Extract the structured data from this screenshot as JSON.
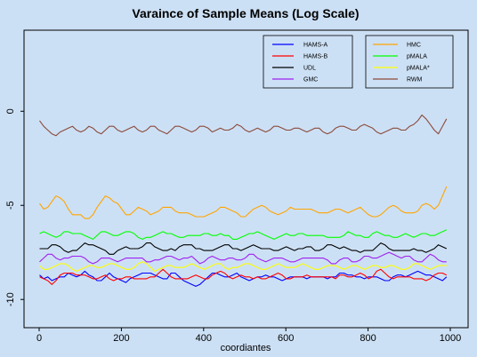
{
  "chart_data": {
    "type": "line",
    "title": "Varaince of Sample Means (Log Scale)",
    "xlabel": "coordiantes",
    "ylabel": "",
    "xlim": [
      0,
      1000
    ],
    "ylim": [
      -11.5,
      4
    ],
    "x_ticks": [
      0,
      200,
      400,
      600,
      800,
      1000
    ],
    "y_ticks": [
      0,
      -5,
      -10
    ],
    "grid": false,
    "legend_position": "top-right",
    "x_start": 1,
    "x_step": 10,
    "series": [
      {
        "name": "HAMS-A",
        "color": "#0000ff",
        "values": [
          -8.7,
          -8.9,
          -8.8,
          -9.0,
          -8.9,
          -8.8,
          -8.8,
          -8.6,
          -8.7,
          -8.8,
          -8.7,
          -8.5,
          -8.7,
          -8.8,
          -9.0,
          -9.0,
          -8.8,
          -8.6,
          -8.8,
          -8.9,
          -9.0,
          -9.1,
          -8.9,
          -8.8,
          -8.7,
          -8.6,
          -8.6,
          -8.6,
          -8.7,
          -8.8,
          -8.9,
          -8.9,
          -8.6,
          -8.6,
          -8.8,
          -9.0,
          -9.1,
          -9.2,
          -9.3,
          -9.2,
          -9.0,
          -8.8,
          -8.6,
          -8.6,
          -8.7,
          -8.8,
          -8.8,
          -8.7,
          -8.6,
          -8.8,
          -8.9,
          -9.0,
          -8.9,
          -8.8,
          -8.8,
          -8.7,
          -8.8,
          -8.8,
          -8.9,
          -9.0,
          -8.9,
          -8.8,
          -8.8,
          -8.8,
          -8.8,
          -8.9,
          -8.8,
          -8.8,
          -8.8,
          -8.8,
          -8.9,
          -8.8,
          -8.8,
          -8.6,
          -8.6,
          -8.7,
          -8.7,
          -8.8,
          -8.8,
          -8.9,
          -8.8,
          -8.8,
          -8.8,
          -8.9,
          -9.0,
          -9.0,
          -8.8,
          -8.7,
          -8.7,
          -8.8,
          -8.7,
          -8.6,
          -8.5,
          -8.6,
          -8.7,
          -8.7,
          -8.8,
          -8.9,
          -9.0,
          -8.8
        ]
      },
      {
        "name": "HAMS-B",
        "color": "#ff0000",
        "values": [
          -8.8,
          -8.9,
          -9.0,
          -9.2,
          -9.0,
          -8.7,
          -8.6,
          -8.6,
          -8.6,
          -8.7,
          -8.7,
          -8.7,
          -8.8,
          -8.9,
          -8.9,
          -8.8,
          -8.7,
          -8.9,
          -9.0,
          -8.9,
          -8.9,
          -8.8,
          -8.8,
          -8.9,
          -8.9,
          -8.9,
          -8.9,
          -8.8,
          -8.8,
          -8.6,
          -8.4,
          -8.6,
          -8.8,
          -8.9,
          -8.9,
          -8.9,
          -8.9,
          -8.8,
          -8.7,
          -8.8,
          -8.9,
          -8.9,
          -8.7,
          -8.6,
          -8.5,
          -8.6,
          -8.8,
          -8.9,
          -8.8,
          -8.7,
          -8.8,
          -8.8,
          -8.9,
          -8.8,
          -8.9,
          -8.9,
          -8.8,
          -8.7,
          -8.6,
          -8.7,
          -8.9,
          -8.9,
          -8.8,
          -8.8,
          -8.8,
          -8.7,
          -8.8,
          -8.8,
          -8.8,
          -8.8,
          -8.8,
          -8.8,
          -8.9,
          -8.7,
          -8.7,
          -8.8,
          -8.8,
          -8.7,
          -8.6,
          -8.7,
          -8.9,
          -8.8,
          -8.5,
          -8.4,
          -8.6,
          -8.8,
          -8.9,
          -8.8,
          -8.8,
          -8.8,
          -8.8,
          -8.9,
          -8.9,
          -8.9,
          -9.0,
          -8.9,
          -8.7,
          -8.6,
          -8.6,
          -8.7
        ]
      },
      {
        "name": "UDL",
        "color": "#000000",
        "values": [
          -7.3,
          -7.3,
          -7.3,
          -7.1,
          -7.1,
          -7.2,
          -7.4,
          -7.5,
          -7.4,
          -7.4,
          -7.2,
          -7.0,
          -7.1,
          -7.1,
          -7.2,
          -7.3,
          -7.4,
          -7.6,
          -7.6,
          -7.4,
          -7.3,
          -7.2,
          -7.3,
          -7.3,
          -7.3,
          -7.2,
          -7.0,
          -7.0,
          -7.2,
          -7.3,
          -7.4,
          -7.4,
          -7.3,
          -7.4,
          -7.2,
          -7.1,
          -7.1,
          -7.1,
          -7.3,
          -7.3,
          -7.4,
          -7.4,
          -7.4,
          -7.3,
          -7.2,
          -7.1,
          -7.1,
          -7.3,
          -7.3,
          -7.4,
          -7.3,
          -7.2,
          -7.1,
          -7.2,
          -7.3,
          -7.3,
          -7.3,
          -7.4,
          -7.4,
          -7.3,
          -7.2,
          -7.3,
          -7.4,
          -7.3,
          -7.3,
          -7.2,
          -7.2,
          -7.4,
          -7.4,
          -7.3,
          -7.1,
          -7.1,
          -7.2,
          -7.3,
          -7.2,
          -7.3,
          -7.4,
          -7.4,
          -7.5,
          -7.4,
          -7.4,
          -7.4,
          -7.2,
          -7.0,
          -7.1,
          -7.3,
          -7.4,
          -7.4,
          -7.4,
          -7.4,
          -7.4,
          -7.3,
          -7.4,
          -7.4,
          -7.5,
          -7.4,
          -7.3,
          -7.1,
          -7.2,
          -7.3
        ]
      },
      {
        "name": "GMC",
        "color": "#a020f0",
        "values": [
          -8.0,
          -7.8,
          -7.6,
          -7.6,
          -7.8,
          -7.9,
          -7.8,
          -7.8,
          -7.7,
          -7.7,
          -7.7,
          -7.8,
          -8.0,
          -8.1,
          -8.0,
          -7.8,
          -7.8,
          -7.8,
          -7.9,
          -8.0,
          -7.9,
          -7.8,
          -7.8,
          -7.8,
          -7.8,
          -7.8,
          -8.0,
          -8.0,
          -7.9,
          -7.9,
          -7.8,
          -7.7,
          -7.7,
          -7.8,
          -7.9,
          -7.8,
          -7.8,
          -7.7,
          -7.9,
          -8.1,
          -8.0,
          -7.8,
          -7.7,
          -7.8,
          -7.9,
          -7.9,
          -7.8,
          -7.8,
          -7.9,
          -7.9,
          -7.8,
          -7.6,
          -7.6,
          -7.8,
          -7.9,
          -8.0,
          -7.9,
          -7.8,
          -7.8,
          -7.8,
          -7.9,
          -8.0,
          -8.0,
          -7.9,
          -7.8,
          -7.8,
          -7.8,
          -7.8,
          -7.8,
          -7.8,
          -7.9,
          -8.1,
          -8.1,
          -7.9,
          -7.8,
          -7.8,
          -8.0,
          -8.0,
          -7.9,
          -7.7,
          -7.7,
          -7.8,
          -7.8,
          -7.7,
          -7.6,
          -7.5,
          -7.6,
          -7.7,
          -7.8,
          -7.7,
          -7.7,
          -7.9,
          -8.0,
          -8.0,
          -7.8,
          -7.6,
          -7.7,
          -7.9,
          -8.0,
          -8.0
        ]
      },
      {
        "name": "HMC",
        "color": "#ffa500",
        "values": [
          -4.9,
          -5.2,
          -5.1,
          -4.8,
          -4.5,
          -4.6,
          -4.8,
          -5.2,
          -5.5,
          -5.5,
          -5.5,
          -5.7,
          -5.7,
          -5.5,
          -5.1,
          -4.8,
          -4.5,
          -4.6,
          -4.8,
          -4.9,
          -5.2,
          -5.5,
          -5.5,
          -5.3,
          -5.1,
          -5.2,
          -5.3,
          -5.5,
          -5.4,
          -5.3,
          -5.1,
          -5.1,
          -5.1,
          -5.3,
          -5.4,
          -5.4,
          -5.4,
          -5.5,
          -5.6,
          -5.6,
          -5.6,
          -5.5,
          -5.4,
          -5.3,
          -5.1,
          -5.1,
          -5.2,
          -5.3,
          -5.4,
          -5.6,
          -5.6,
          -5.4,
          -5.2,
          -5.1,
          -5.0,
          -5.1,
          -5.3,
          -5.4,
          -5.5,
          -5.4,
          -5.3,
          -5.1,
          -5.2,
          -5.2,
          -5.2,
          -5.2,
          -5.2,
          -5.3,
          -5.4,
          -5.4,
          -5.4,
          -5.3,
          -5.2,
          -5.2,
          -5.3,
          -5.4,
          -5.3,
          -5.2,
          -5.1,
          -5.3,
          -5.5,
          -5.6,
          -5.6,
          -5.5,
          -5.3,
          -5.1,
          -5.0,
          -5.1,
          -5.3,
          -5.4,
          -5.4,
          -5.4,
          -5.3,
          -5.0,
          -4.9,
          -5.0,
          -5.2,
          -5.0,
          -4.5,
          -4.0
        ]
      },
      {
        "name": "pMALA",
        "color": "#00ff00",
        "values": [
          -6.5,
          -6.4,
          -6.5,
          -6.6,
          -6.7,
          -6.6,
          -6.4,
          -6.4,
          -6.5,
          -6.5,
          -6.5,
          -6.6,
          -6.7,
          -6.8,
          -6.6,
          -6.4,
          -6.4,
          -6.5,
          -6.6,
          -6.6,
          -6.5,
          -6.4,
          -6.4,
          -6.5,
          -6.7,
          -6.8,
          -6.7,
          -6.7,
          -6.6,
          -6.5,
          -6.4,
          -6.5,
          -6.5,
          -6.6,
          -6.7,
          -6.7,
          -6.6,
          -6.6,
          -6.6,
          -6.6,
          -6.5,
          -6.5,
          -6.6,
          -6.6,
          -6.5,
          -6.6,
          -6.6,
          -6.8,
          -6.8,
          -6.7,
          -6.6,
          -6.5,
          -6.5,
          -6.4,
          -6.5,
          -6.6,
          -6.7,
          -6.8,
          -6.7,
          -6.6,
          -6.5,
          -6.6,
          -6.6,
          -6.5,
          -6.5,
          -6.6,
          -6.6,
          -6.6,
          -6.6,
          -6.6,
          -6.7,
          -6.7,
          -6.7,
          -6.7,
          -6.6,
          -6.4,
          -6.5,
          -6.6,
          -6.6,
          -6.7,
          -6.7,
          -6.5,
          -6.4,
          -6.5,
          -6.6,
          -6.6,
          -6.7,
          -6.7,
          -6.6,
          -6.5,
          -6.6,
          -6.7,
          -6.6,
          -6.5,
          -6.5,
          -6.6,
          -6.6,
          -6.5,
          -6.4,
          -6.3
        ]
      },
      {
        "name": "pMALA*",
        "color": "#ffff00",
        "values": [
          -8.2,
          -8.4,
          -8.4,
          -8.3,
          -8.2,
          -8.1,
          -8.1,
          -8.2,
          -8.4,
          -8.5,
          -8.4,
          -8.3,
          -8.2,
          -8.2,
          -8.3,
          -8.3,
          -8.2,
          -8.1,
          -8.1,
          -8.2,
          -8.3,
          -8.4,
          -8.4,
          -8.3,
          -8.1,
          -8.0,
          -8.1,
          -8.3,
          -8.5,
          -8.4,
          -8.3,
          -8.2,
          -8.2,
          -8.3,
          -8.3,
          -8.3,
          -8.2,
          -8.1,
          -8.2,
          -8.3,
          -8.4,
          -8.3,
          -8.2,
          -8.1,
          -8.1,
          -8.3,
          -8.4,
          -8.3,
          -8.3,
          -8.2,
          -8.1,
          -8.1,
          -8.2,
          -8.3,
          -8.4,
          -8.4,
          -8.3,
          -8.2,
          -8.1,
          -8.2,
          -8.3,
          -8.3,
          -8.3,
          -8.2,
          -8.1,
          -8.2,
          -8.3,
          -8.4,
          -8.4,
          -8.3,
          -8.2,
          -8.2,
          -8.2,
          -8.3,
          -8.4,
          -8.3,
          -8.2,
          -8.2,
          -8.3,
          -8.4,
          -8.3,
          -8.2,
          -8.2,
          -8.3,
          -8.3,
          -8.2,
          -8.2,
          -8.3,
          -8.4,
          -8.4,
          -8.3,
          -8.1,
          -8.1,
          -8.2,
          -8.3,
          -8.4,
          -8.3,
          -8.2,
          -8.2,
          -8.2
        ]
      },
      {
        "name": "RWM",
        "color": "#8b4a3a",
        "values": [
          -0.5,
          -0.8,
          -1.0,
          -1.2,
          -1.3,
          -1.1,
          -1.0,
          -0.9,
          -0.8,
          -1.0,
          -1.1,
          -1.0,
          -0.8,
          -0.9,
          -1.1,
          -1.2,
          -1.0,
          -0.8,
          -0.8,
          -1.0,
          -1.1,
          -1.0,
          -0.9,
          -0.8,
          -1.0,
          -1.1,
          -1.0,
          -0.8,
          -0.8,
          -1.0,
          -1.1,
          -1.2,
          -1.0,
          -0.8,
          -0.8,
          -0.9,
          -1.0,
          -1.1,
          -1.0,
          -0.8,
          -0.8,
          -0.9,
          -1.1,
          -1.0,
          -0.9,
          -1.0,
          -1.0,
          -0.9,
          -0.7,
          -0.8,
          -1.0,
          -1.1,
          -1.0,
          -0.9,
          -1.0,
          -1.1,
          -1.0,
          -0.8,
          -0.8,
          -0.9,
          -1.0,
          -1.0,
          -0.9,
          -0.9,
          -1.0,
          -1.1,
          -1.0,
          -0.9,
          -0.9,
          -1.1,
          -1.2,
          -1.1,
          -0.9,
          -0.8,
          -0.8,
          -0.9,
          -1.0,
          -1.0,
          -0.8,
          -0.7,
          -0.8,
          -0.9,
          -1.1,
          -1.2,
          -1.1,
          -1.0,
          -0.9,
          -0.9,
          -1.0,
          -1.0,
          -0.8,
          -0.7,
          -0.5,
          -0.2,
          -0.4,
          -0.7,
          -1.0,
          -1.2,
          -0.8,
          -0.4
        ]
      }
    ]
  }
}
